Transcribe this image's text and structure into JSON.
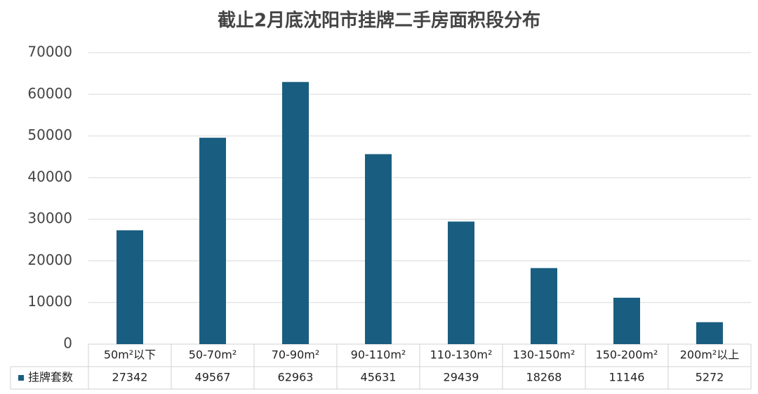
{
  "chart_data": {
    "type": "bar",
    "title": "截止2月底沈阳市挂牌二手房面积段分布",
    "categories": [
      "50m²以下",
      "50-70m²",
      "70-90m²",
      "90-110m²",
      "110-130m²",
      "130-150m²",
      "150-200m²",
      "200m²以上"
    ],
    "series": [
      {
        "name": "挂牌套数",
        "color": "#195e80",
        "values": [
          27342,
          49567,
          62963,
          45631,
          29439,
          18268,
          11146,
          5272
        ]
      }
    ],
    "ylim": [
      0,
      70000
    ],
    "yticks": [
      0,
      10000,
      20000,
      30000,
      40000,
      50000,
      60000,
      70000
    ],
    "grid": true
  }
}
